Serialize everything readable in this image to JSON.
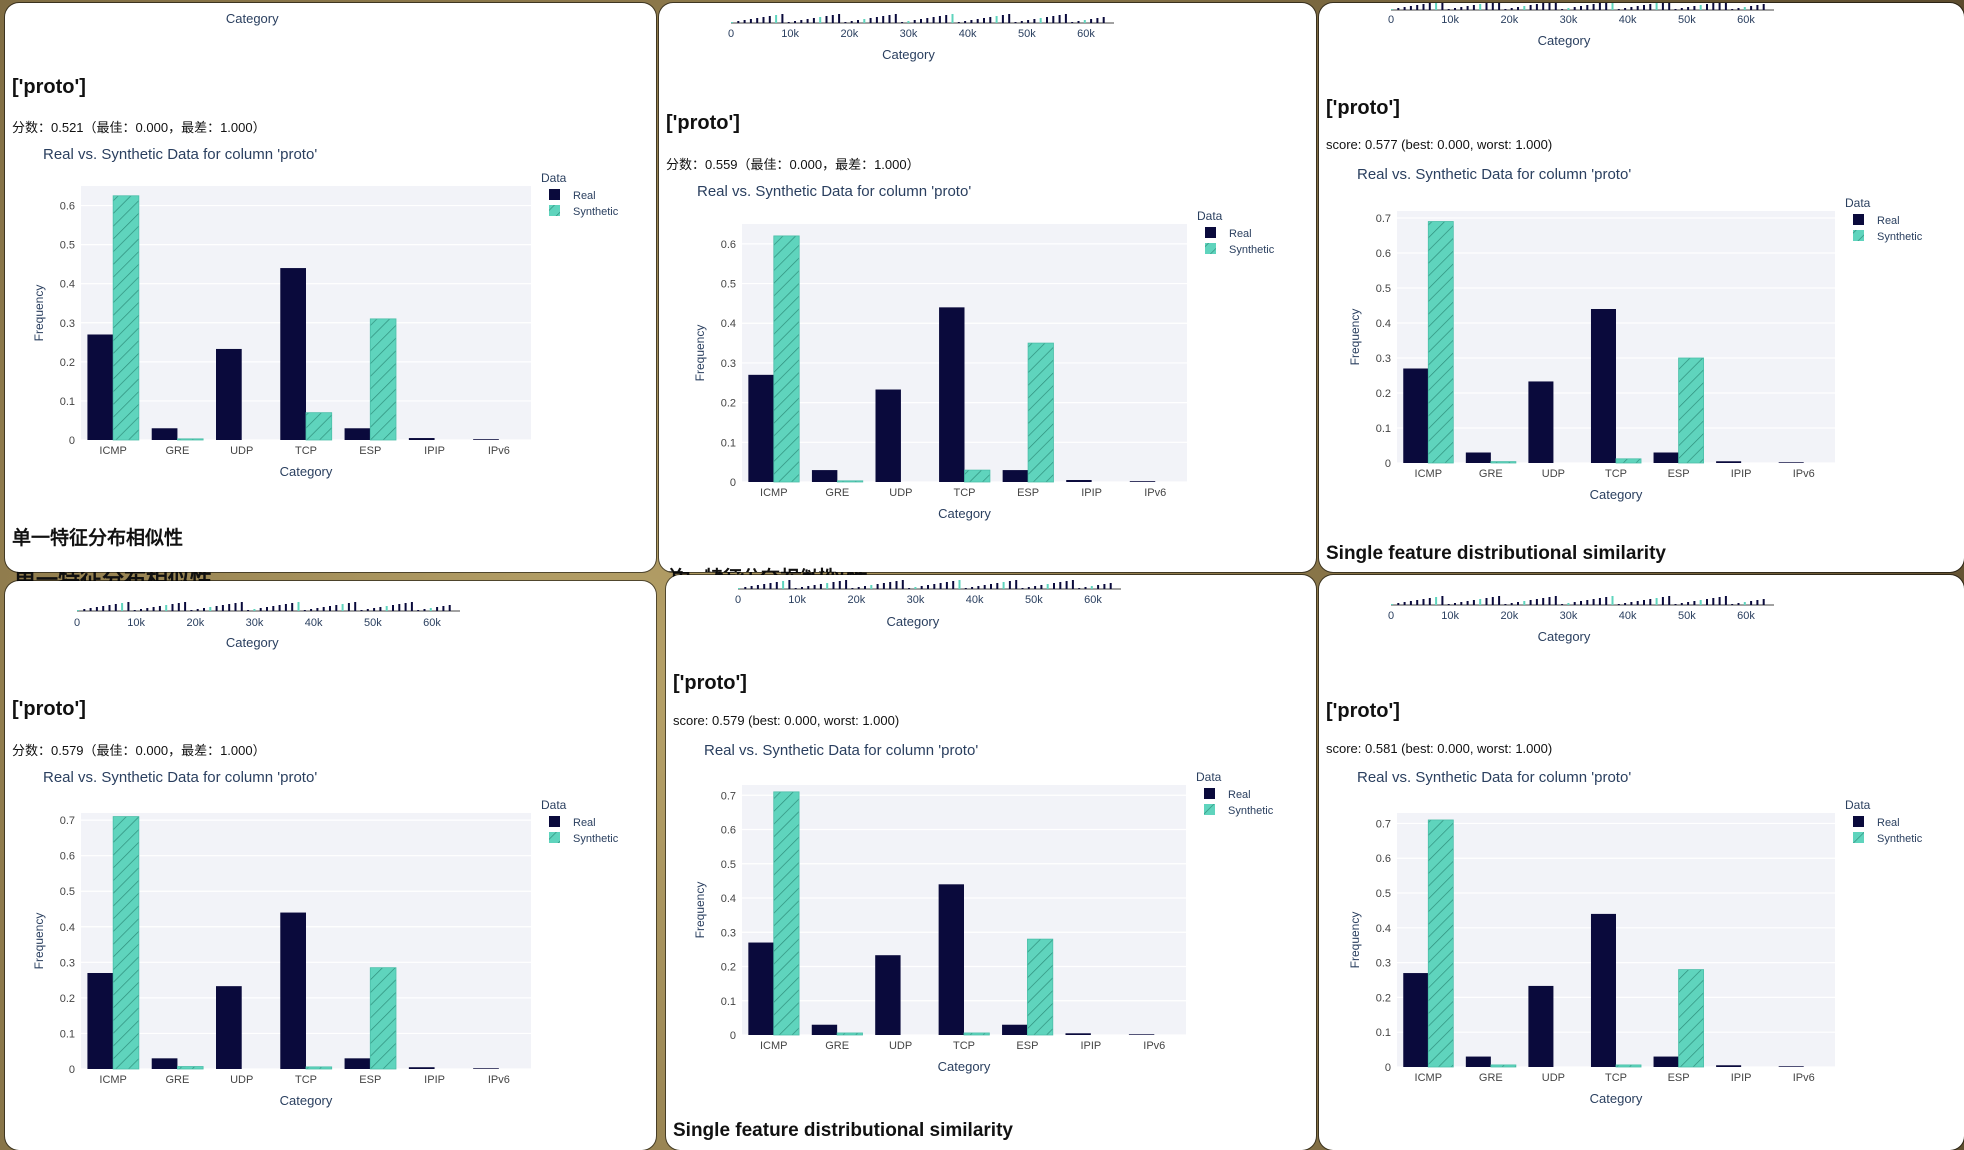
{
  "window_title": "",
  "colors": {
    "real": "#0a0a3c",
    "synthetic": "#5fd4bd",
    "plot_bg": "#f2f3f8",
    "text": "#2a3f5f"
  },
  "legend": {
    "title": "Data",
    "real": "Real",
    "synthetic": "Synthetic"
  },
  "mini_axis": {
    "ticks": [
      "0",
      "10k",
      "20k",
      "30k",
      "40k",
      "50k",
      "60k"
    ],
    "xlabel": "Category"
  },
  "panels": [
    {
      "id": "p1",
      "heading": "['proto']",
      "score": "分数：0.521（最佳：0.000，最差：1.000）",
      "bottom_label": "单一特征分布相似性",
      "top_category": "Category"
    },
    {
      "id": "p2",
      "heading": "['proto']",
      "score": "分数：0.559（最佳：0.000，最差：1.000）",
      "bottom_label": "单一特征分布相似性",
      "top_category": "Category"
    },
    {
      "id": "p3",
      "heading": "['proto']",
      "score": "score: 0.577 (best: 0.000, worst: 1.000)",
      "bottom_label": "Single feature distributional similarity",
      "top_category": "Category"
    },
    {
      "id": "p4",
      "heading": "['proto']",
      "score": "分数：0.579（最佳：0.000，最差：1.000）",
      "bottom_label": "",
      "top_category": "Category"
    },
    {
      "id": "p5",
      "heading": "['proto']",
      "score": "score: 0.579 (best: 0.000, worst: 1.000)",
      "bottom_label": "Single feature distributional similarity",
      "top_category": "Category"
    },
    {
      "id": "p6",
      "heading": "['proto']",
      "score": "score: 0.581 (best: 0.000, worst: 1.000)",
      "bottom_label": "",
      "top_category": "Category"
    }
  ],
  "chart_data": [
    {
      "type": "bar",
      "title": "Real vs. Synthetic Data for column 'proto'",
      "xlabel": "Category",
      "ylabel": "Frequency",
      "categories": [
        "ICMP",
        "GRE",
        "UDP",
        "TCP",
        "ESP",
        "IPIP",
        "IPv6"
      ],
      "ylim": [
        0,
        0.65
      ],
      "yticks": [
        "0",
        "0.1",
        "0.2",
        "0.3",
        "0.4",
        "0.5",
        "0.6"
      ],
      "legend_position": "top-right",
      "grid": true,
      "series": [
        {
          "name": "Real",
          "values": [
            0.27,
            0.03,
            0.233,
            0.44,
            0.03,
            0.005,
            0.002
          ]
        },
        {
          "name": "Synthetic",
          "values": [
            0.625,
            0.003,
            0,
            0.07,
            0.31,
            0,
            0
          ]
        }
      ]
    },
    {
      "type": "bar",
      "title": "Real vs. Synthetic Data for column 'proto'",
      "xlabel": "Category",
      "ylabel": "Frequency",
      "categories": [
        "ICMP",
        "GRE",
        "UDP",
        "TCP",
        "ESP",
        "IPIP",
        "IPv6"
      ],
      "ylim": [
        0,
        0.65
      ],
      "yticks": [
        "0",
        "0.1",
        "0.2",
        "0.3",
        "0.4",
        "0.5",
        "0.6"
      ],
      "legend_position": "top-right",
      "grid": true,
      "series": [
        {
          "name": "Real",
          "values": [
            0.27,
            0.03,
            0.233,
            0.44,
            0.03,
            0.005,
            0.002
          ]
        },
        {
          "name": "Synthetic",
          "values": [
            0.62,
            0.003,
            0,
            0.03,
            0.35,
            0,
            0
          ]
        }
      ]
    },
    {
      "type": "bar",
      "title": "Real vs. Synthetic Data for column 'proto'",
      "xlabel": "Category",
      "ylabel": "Frequency",
      "categories": [
        "ICMP",
        "GRE",
        "UDP",
        "TCP",
        "ESP",
        "IPIP",
        "IPv6"
      ],
      "ylim": [
        0,
        0.72
      ],
      "yticks": [
        "0",
        "0.1",
        "0.2",
        "0.3",
        "0.4",
        "0.5",
        "0.6",
        "0.7"
      ],
      "legend_position": "top-right",
      "grid": true,
      "series": [
        {
          "name": "Real",
          "values": [
            0.27,
            0.03,
            0.233,
            0.44,
            0.03,
            0.005,
            0.002
          ]
        },
        {
          "name": "Synthetic",
          "values": [
            0.69,
            0.004,
            0,
            0.012,
            0.3,
            0,
            0
          ]
        }
      ]
    },
    {
      "type": "bar",
      "title": "Real vs. Synthetic Data for column 'proto'",
      "xlabel": "Category",
      "ylabel": "Frequency",
      "categories": [
        "ICMP",
        "GRE",
        "UDP",
        "TCP",
        "ESP",
        "IPIP",
        "IPv6"
      ],
      "ylim": [
        0,
        0.72
      ],
      "yticks": [
        "0",
        "0.1",
        "0.2",
        "0.3",
        "0.4",
        "0.5",
        "0.6",
        "0.7"
      ],
      "legend_position": "top-right",
      "grid": true,
      "series": [
        {
          "name": "Real",
          "values": [
            0.27,
            0.03,
            0.233,
            0.44,
            0.03,
            0.005,
            0.002
          ]
        },
        {
          "name": "Synthetic",
          "values": [
            0.71,
            0.007,
            0,
            0.006,
            0.285,
            0,
            0
          ]
        }
      ]
    },
    {
      "type": "bar",
      "title": "Real vs. Synthetic Data for column 'proto'",
      "xlabel": "Category",
      "ylabel": "Frequency",
      "categories": [
        "ICMP",
        "GRE",
        "UDP",
        "TCP",
        "ESP",
        "IPIP",
        "IPv6"
      ],
      "ylim": [
        0,
        0.73
      ],
      "yticks": [
        "0",
        "0.1",
        "0.2",
        "0.3",
        "0.4",
        "0.5",
        "0.6",
        "0.7"
      ],
      "legend_position": "top-right",
      "grid": true,
      "series": [
        {
          "name": "Real",
          "values": [
            0.27,
            0.03,
            0.233,
            0.44,
            0.03,
            0.005,
            0.002
          ]
        },
        {
          "name": "Synthetic",
          "values": [
            0.71,
            0.006,
            0,
            0.006,
            0.28,
            0,
            0
          ]
        }
      ]
    },
    {
      "type": "bar",
      "title": "Real vs. Synthetic Data for column 'proto'",
      "xlabel": "Category",
      "ylabel": "Frequency",
      "categories": [
        "ICMP",
        "GRE",
        "UDP",
        "TCP",
        "ESP",
        "IPIP",
        "IPv6"
      ],
      "ylim": [
        0,
        0.73
      ],
      "yticks": [
        "0",
        "0.1",
        "0.2",
        "0.3",
        "0.4",
        "0.5",
        "0.6",
        "0.7"
      ],
      "legend_position": "top-right",
      "grid": true,
      "series": [
        {
          "name": "Real",
          "values": [
            0.27,
            0.03,
            0.233,
            0.44,
            0.03,
            0.005,
            0.002
          ]
        },
        {
          "name": "Synthetic",
          "values": [
            0.71,
            0.006,
            0,
            0.006,
            0.28,
            0,
            0
          ]
        }
      ]
    }
  ]
}
